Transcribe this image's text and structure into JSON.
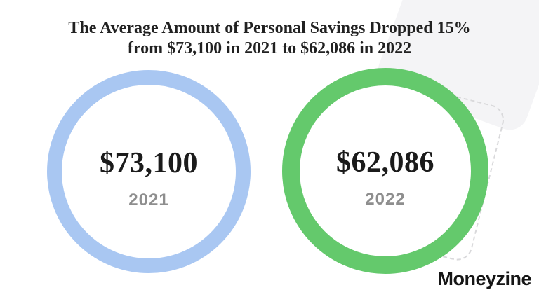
{
  "header": {
    "title_line1": "The Average Amount of Personal Savings Dropped 15%",
    "title_line2": "from $73,100 in 2021 to $62,086 in 2022"
  },
  "circles": [
    {
      "value": "$73,100",
      "year": "2021",
      "ring_color": "#A9C7F2"
    },
    {
      "value": "$62,086",
      "year": "2022",
      "ring_color": "#64C96C"
    }
  ],
  "brand": {
    "name": "Moneyzine",
    "text_color": "#161616"
  },
  "chart_data": {
    "type": "table",
    "title": "The Average Amount of Personal Savings Dropped 15% from $73,100 in 2021 to $62,086 in 2022",
    "categories": [
      "2021",
      "2022"
    ],
    "values": [
      73100,
      62086
    ],
    "series": [
      {
        "name": "Average personal savings (USD)",
        "values": [
          73100,
          62086
        ]
      }
    ],
    "change_percent": -15,
    "legend_position": "none",
    "grid": false
  }
}
